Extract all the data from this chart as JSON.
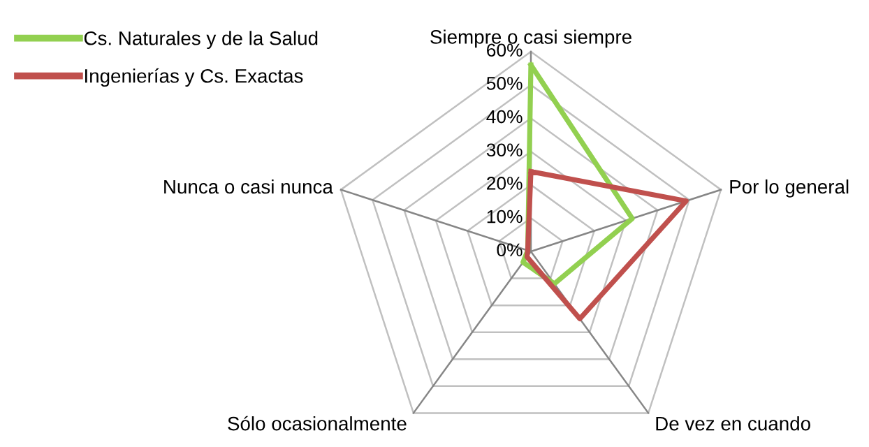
{
  "chart_data": {
    "type": "radar",
    "categories": [
      "Siempre o casi siempre",
      "Por lo general",
      "De vez en cuando",
      "Sólo ocasionalmente",
      "Nunca o casi nunca"
    ],
    "series": [
      {
        "name": "Cs. Naturales y de la Salud",
        "color": "#92d050",
        "values": [
          56,
          32,
          12,
          4,
          1
        ]
      },
      {
        "name": "Ingenierías y Cs. Exactas",
        "color": "#c0504d",
        "values": [
          24,
          49,
          25,
          2,
          1
        ]
      }
    ],
    "ylim": [
      0,
      60
    ],
    "yticks": [
      {
        "value": 0,
        "label": "0%"
      },
      {
        "value": 10,
        "label": "10%"
      },
      {
        "value": 20,
        "label": "20%"
      },
      {
        "value": 30,
        "label": "30%"
      },
      {
        "value": 40,
        "label": "40%"
      },
      {
        "value": 50,
        "label": "50%"
      },
      {
        "value": 60,
        "label": "60%"
      }
    ],
    "grid": true,
    "legend": "top left",
    "marker": "none",
    "line_style": "solid"
  }
}
